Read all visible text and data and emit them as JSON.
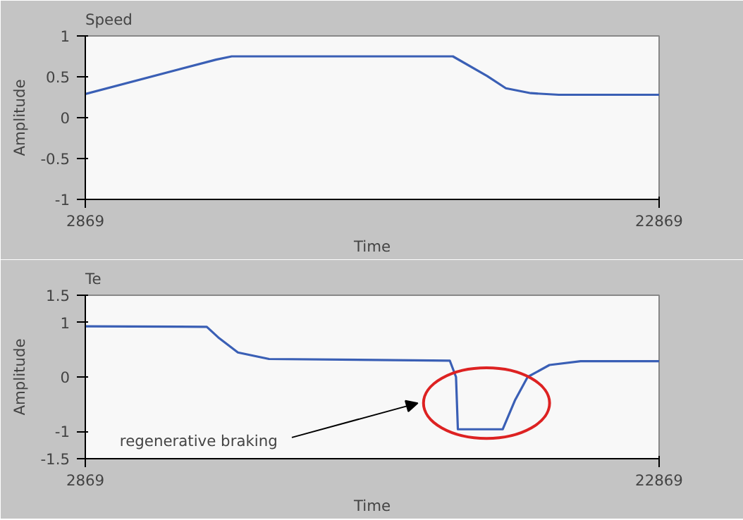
{
  "chart_data": [
    {
      "type": "line",
      "title": "Speed",
      "xlabel": "Time",
      "ylabel": "Amplitude",
      "xlim": [
        2869,
        22869
      ],
      "xticks": [
        2869,
        22869
      ],
      "ylim": [
        -1,
        1
      ],
      "yticks": [
        -1,
        -0.5,
        0,
        0.5,
        1
      ],
      "grid": false,
      "series": [
        {
          "color": "#3a5fb5",
          "x": [
            2869,
            7429,
            7972,
            15681,
            16875,
            17527,
            18395,
            19372,
            22869
          ],
          "values": [
            0.29,
            0.71,
            0.75,
            0.75,
            0.51,
            0.36,
            0.3,
            0.28,
            0.28
          ]
        }
      ]
    },
    {
      "type": "line",
      "title": "Te",
      "xlabel": "Time",
      "ylabel": "Amplitude",
      "xlim": [
        2869,
        22869
      ],
      "xticks": [
        2869,
        22869
      ],
      "ylim": [
        -1.5,
        1.5
      ],
      "yticks": [
        -1.5,
        -1,
        0,
        1,
        1.5
      ],
      "grid": false,
      "annotations": [
        "regenerative braking"
      ],
      "series": [
        {
          "color": "#3a5fb5",
          "x": [
            2869,
            7104,
            7538,
            8189,
            9275,
            15573,
            15790,
            15855,
            17419,
            17853,
            18287,
            19047,
            20133,
            22869
          ],
          "values": [
            0.93,
            0.92,
            0.71,
            0.45,
            0.33,
            0.3,
            0,
            -0.96,
            -0.96,
            -0.42,
            0,
            0.22,
            0.29,
            0.29
          ]
        }
      ]
    }
  ]
}
